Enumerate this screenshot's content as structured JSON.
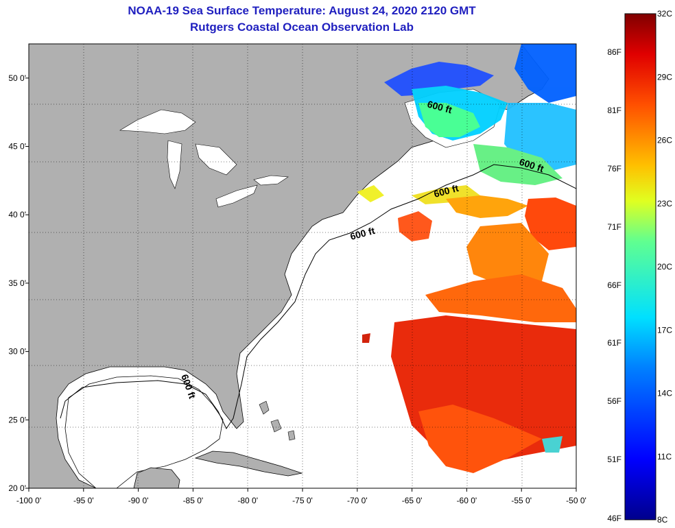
{
  "title": {
    "line1": "NOAA-19 Sea Surface Temperature:  August 24, 2020 2120 GMT",
    "line2": "Rutgers Coastal Ocean Observation Lab"
  },
  "map": {
    "lon_range": [
      -100,
      -50
    ],
    "lat_range": [
      20,
      52.5
    ],
    "lon_ticks": [
      {
        "value": -100,
        "label": "-100 0'"
      },
      {
        "value": -95,
        "label": "-95 0'"
      },
      {
        "value": -90,
        "label": "-90 0'"
      },
      {
        "value": -85,
        "label": "-85 0'"
      },
      {
        "value": -80,
        "label": "-80 0'"
      },
      {
        "value": -75,
        "label": "-75 0'"
      },
      {
        "value": -70,
        "label": "-70 0'"
      },
      {
        "value": -65,
        "label": "-65 0'"
      },
      {
        "value": -60,
        "label": "-60 0'"
      },
      {
        "value": -55,
        "label": "-55 0'"
      },
      {
        "value": -50,
        "label": "-50 0'"
      }
    ],
    "lat_ticks": [
      {
        "value": 20,
        "label": "20 0'"
      },
      {
        "value": 25,
        "label": "25 0'"
      },
      {
        "value": 30,
        "label": "30 0'"
      },
      {
        "value": 35,
        "label": "35 0'"
      },
      {
        "value": 40,
        "label": "40 0'"
      },
      {
        "value": 45,
        "label": "45 0'"
      },
      {
        "value": 50,
        "label": "50 0'"
      }
    ],
    "contour_labels": [
      "600 ft",
      "600 ft",
      "600 ft",
      "600 ft",
      "600 ft"
    ],
    "land_color": "#b0b0b0",
    "water_color": "#ffffff"
  },
  "colorbar": {
    "min_c": 8,
    "max_c": 32,
    "celsius_labels": [
      "32C",
      "29C",
      "26C",
      "23C",
      "20C",
      "17C",
      "14C",
      "11C",
      "8C"
    ],
    "fahrenheit_labels": [
      "86F",
      "81F",
      "76F",
      "71F",
      "66F",
      "61F",
      "56F",
      "51F",
      "46F"
    ]
  }
}
